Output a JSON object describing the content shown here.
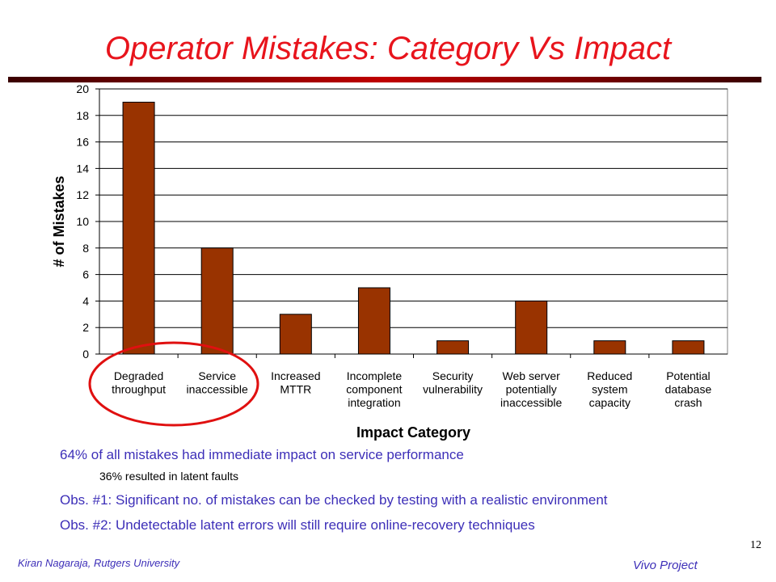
{
  "slide": {
    "title": "Operator Mistakes: Category Vs Impact",
    "notes": [
      "64% of all mistakes had immediate impact on service performance",
      "36% resulted in latent faults",
      "Obs. #1: Significant no. of mistakes can be checked by testing with a realistic environment",
      "Obs. #2: Undetectable latent errors will still require online-recovery techniques"
    ],
    "page_number": "12",
    "footer_left": "Kiran Nagaraja, Rutgers University",
    "footer_right": "Vivo Project"
  },
  "colors": {
    "title": "#e8141c",
    "bar": "#993300",
    "highlight_circle": "#e01010",
    "note_text": "#3d2fb8"
  },
  "chart_data": {
    "type": "bar",
    "categories": [
      [
        "Degraded",
        "throughput"
      ],
      [
        "Service",
        "inaccessible"
      ],
      [
        "Increased",
        "MTTR"
      ],
      [
        "Incomplete",
        "component",
        "integration"
      ],
      [
        "Security",
        "vulnerability"
      ],
      [
        "Web server",
        "potentially",
        "inaccessible"
      ],
      [
        "Reduced",
        "system",
        "capacity"
      ],
      [
        "Potential",
        "database",
        "crash"
      ]
    ],
    "values": [
      19,
      8,
      3,
      5,
      1,
      4,
      1,
      1
    ],
    "xlabel": "Impact Category",
    "ylabel": "# of Mistakes",
    "ylim": [
      0,
      20
    ],
    "yticks": [
      0,
      2,
      4,
      6,
      8,
      10,
      12,
      14,
      16,
      18,
      20
    ],
    "grid": true,
    "legend": false,
    "highlight": "ellipse around the first two categories"
  }
}
